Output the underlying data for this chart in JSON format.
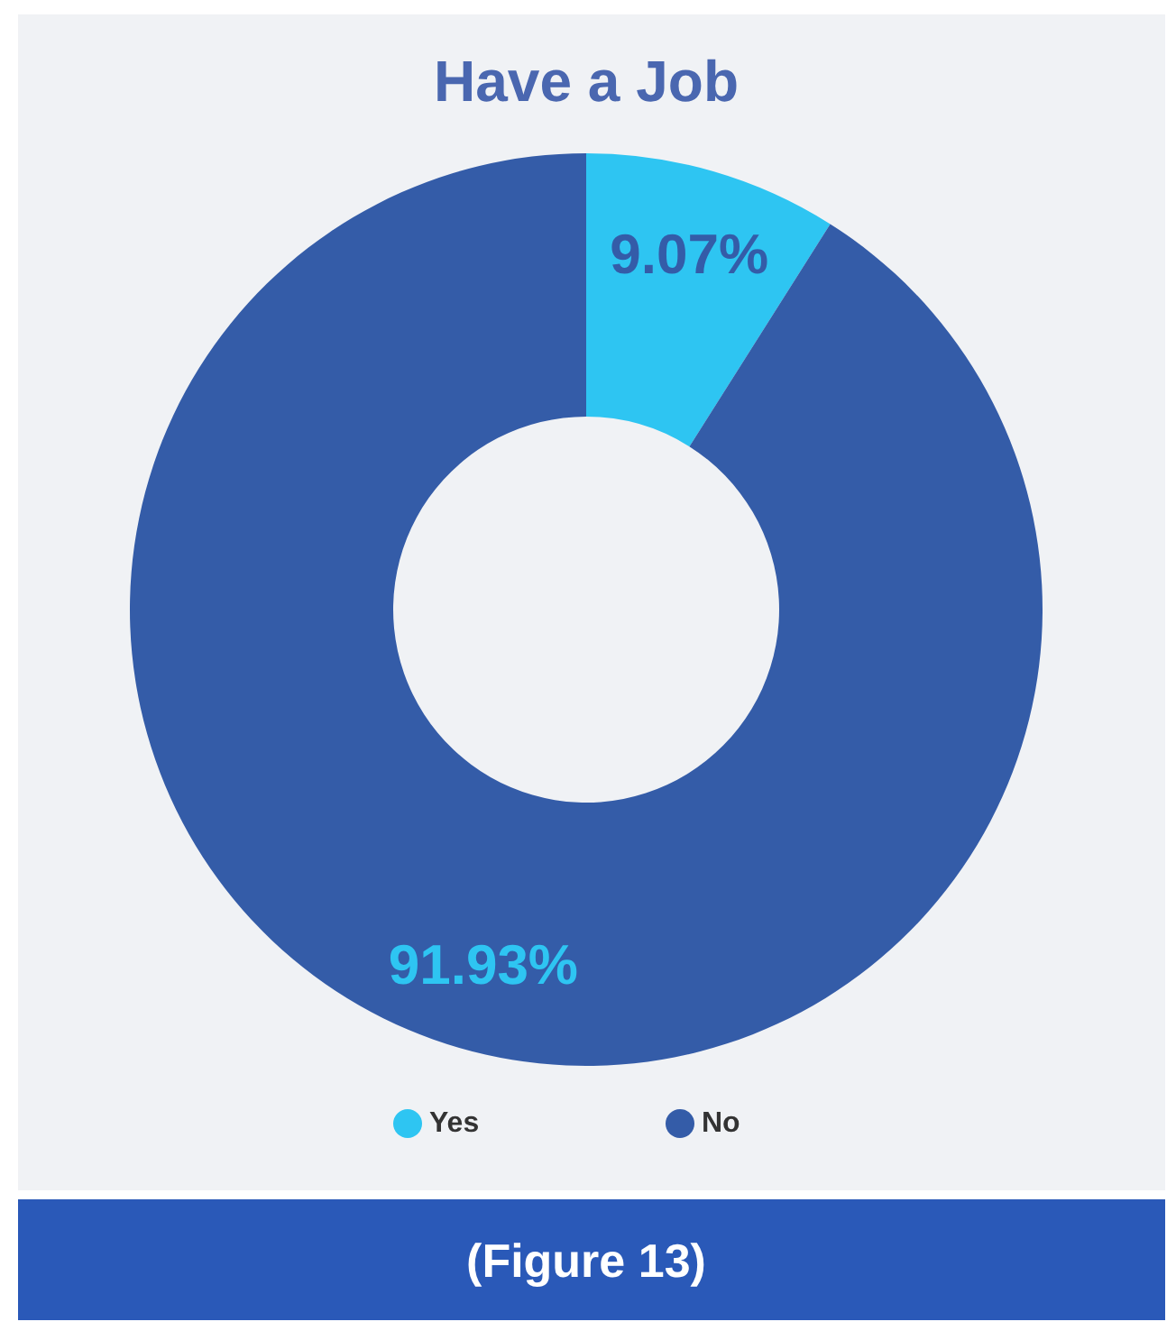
{
  "chart_data": {
    "type": "donut",
    "title": "Have a Job",
    "categories": [
      "Yes",
      "No"
    ],
    "values": [
      9.07,
      91.93
    ],
    "colors": [
      "#2ec5f2",
      "#345ca8"
    ],
    "value_labels": [
      "9.07%",
      "91.93%"
    ],
    "legend": "bottom",
    "annotations": [
      "(Figure 13)"
    ]
  }
}
